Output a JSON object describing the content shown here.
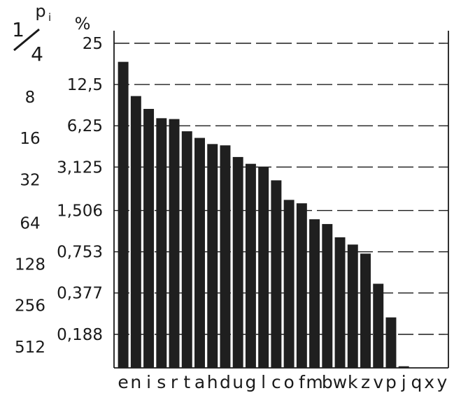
{
  "chart_data": {
    "type": "bar",
    "title": "",
    "xlabel": "",
    "left_axis_header": {
      "p": "p",
      "i": "i",
      "one": "1",
      "four": "4"
    },
    "right_axis_header": "%",
    "left_ticks": [
      "8",
      "16",
      "32",
      "64",
      "128",
      "256",
      "512"
    ],
    "right_ticks": [
      "25",
      "12,5",
      "6,25",
      "3,125",
      "1,506",
      "0,753",
      "0,377",
      "0,188"
    ],
    "tick_values": [
      25,
      12.5,
      6.25,
      3.125,
      1.506,
      0.753,
      0.377,
      0.188
    ],
    "categories": [
      "e",
      "n",
      "i",
      "s",
      "r",
      "t",
      "a",
      "h",
      "d",
      "u",
      "g",
      "l",
      "c",
      "o",
      "f",
      "m",
      "b",
      "w",
      "k",
      "z",
      "v",
      "p",
      "j",
      "q",
      "x",
      "y"
    ],
    "values": [
      18.3,
      10.3,
      8.3,
      7.1,
      7.0,
      5.7,
      5.1,
      4.6,
      4.5,
      3.7,
      3.3,
      3.1,
      2.5,
      1.8,
      1.7,
      1.3,
      1.2,
      0.96,
      0.85,
      0.73,
      0.44,
      0.25,
      0.11,
      null,
      null,
      null
    ],
    "scale": "log2",
    "grid": "dashed horizontal",
    "colors": {
      "bar": "#1f1f1f",
      "axis": "#1a1a1a"
    }
  }
}
